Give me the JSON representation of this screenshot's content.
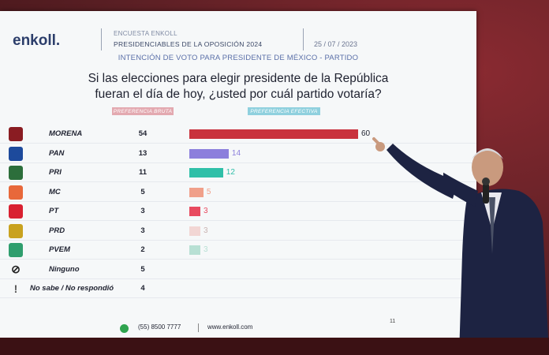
{
  "header": {
    "logo": "enkoll.",
    "line1": "ENCUESTA ENKOLL",
    "line2": "PRESIDENCIABLES DE LA OPOSICIÓN 2024",
    "date": "25 / 07 / 2023"
  },
  "subtitle": "INTENCIÓN DE VOTO PARA PRESIDENTE DE MÉXICO - PARTIDO",
  "question_line1": "Si las elecciones para elegir presidente de la República",
  "question_line2": "fueran el día de hoy, ¿usted por cuál partido votaría?",
  "col1": "PREFERENCIA BRUTA",
  "col2": "PREFERENCIA EFECTIVA",
  "chart_data": {
    "type": "bar",
    "categories": [
      "MORENA",
      "PAN",
      "PRI",
      "MC",
      "PT",
      "PRD",
      "PVEM",
      "Ninguno",
      "No sabe / No respondió"
    ],
    "series": [
      {
        "name": "PREFERENCIA BRUTA",
        "values": [
          54,
          13,
          11,
          5,
          3,
          3,
          2,
          5,
          4
        ]
      },
      {
        "name": "PREFERENCIA EFECTIVA",
        "values": [
          60,
          14,
          12,
          5,
          3,
          3,
          3,
          null,
          null
        ]
      }
    ],
    "colors": [
      "#c9323d",
      "#8c7fdc",
      "#2fbfa8",
      "#f0a08a",
      "#e84a5f",
      "#f2d6d4",
      "#b8e0d4"
    ]
  },
  "parties": [
    {
      "name": "MORENA",
      "bruta": "54",
      "efectiva": "60",
      "icon": "MORENA",
      "color": "#c9323d",
      "icon_color": "#8a1c22"
    },
    {
      "name": "PAN",
      "bruta": "13",
      "efectiva": "14",
      "icon": "PAN",
      "color": "#8c7fdc",
      "icon_color": "#1d4a9c"
    },
    {
      "name": "PRI",
      "bruta": "11",
      "efectiva": "12",
      "icon": "PRI",
      "color": "#2fbfa8",
      "icon_color": "#2c6e3b"
    },
    {
      "name": "MC",
      "bruta": "5",
      "efectiva": "5",
      "icon": "MC",
      "color": "#f0a08a",
      "icon_color": "#e8683a"
    },
    {
      "name": "PT",
      "bruta": "3",
      "efectiva": "3",
      "icon": "PT",
      "color": "#e84a5f",
      "icon_color": "#d92030"
    },
    {
      "name": "PRD",
      "bruta": "3",
      "efectiva": "3",
      "icon": "PRD",
      "color": "#f2d6d4",
      "icon_color": "#c9a21f"
    },
    {
      "name": "PVEM",
      "bruta": "2",
      "efectiva": "3",
      "icon": "VERDE",
      "color": "#b8e0d4",
      "icon_color": "#2f9e6e"
    },
    {
      "name": "Ninguno",
      "bruta": "5",
      "efectiva": "",
      "icon": "⊘",
      "color": "",
      "icon_color": "#222"
    },
    {
      "name": "No sabe / No respondió",
      "bruta": "4",
      "efectiva": "",
      "icon": "!",
      "color": "",
      "icon_color": "#555"
    }
  ],
  "footer": {
    "phone": "(55) 8500 7777",
    "web": "www.enkoll.com",
    "page": "11"
  }
}
